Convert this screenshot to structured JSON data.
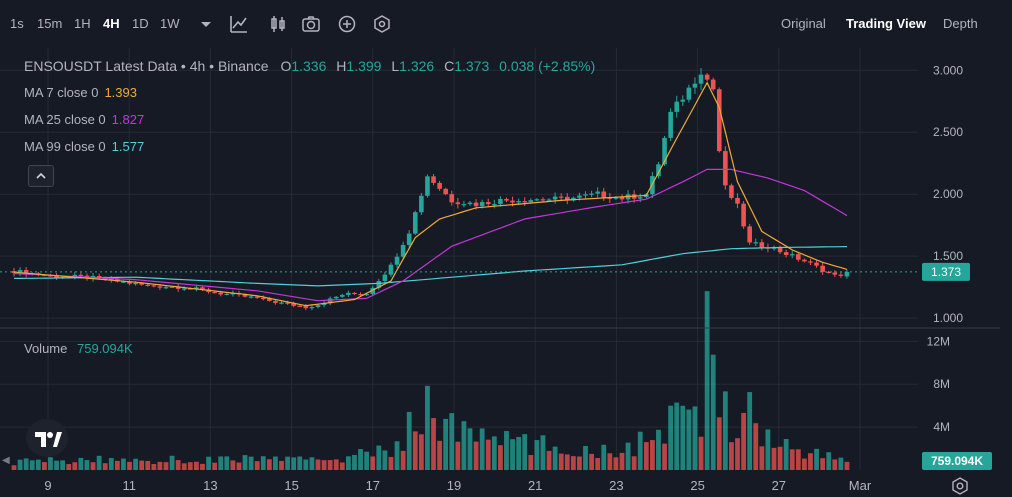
{
  "toolbar": {
    "intervals": [
      "1s",
      "15m",
      "1H",
      "4H",
      "1D",
      "1W"
    ],
    "active_interval": "4H",
    "icons": [
      "chevron-down-icon",
      "indicators-icon",
      "candle-type-icon",
      "camera-icon",
      "add-icon",
      "settings-hex-icon"
    ],
    "views": [
      "Original",
      "Trading View",
      "Depth"
    ],
    "active_view": "Trading View"
  },
  "legend": {
    "title": "ENSOUSDT Latest Data • 4h • Binance",
    "o_label": "O",
    "o": "1.336",
    "h_label": "H",
    "h": "1.399",
    "l_label": "L",
    "l": "1.326",
    "c_label": "C",
    "c": "1.373",
    "change": "0.038 (+2.85%)",
    "ma7_label": "MA 7 close 0",
    "ma7": "1.393",
    "ma25_label": "MA 25 close 0",
    "ma25": "1.827",
    "ma99_label": "MA 99 close 0",
    "ma99": "1.577"
  },
  "volume": {
    "label": "Volume",
    "value": "759.094K"
  },
  "colors": {
    "bg": "#161a25",
    "up": "#26a69a",
    "down": "#ef5350",
    "ma7": "#f0a93b",
    "ma25": "#c337d6",
    "ma99": "#4fd0d8",
    "grid": "#262a35"
  },
  "chart_data": {
    "type": "candlestick",
    "symbol": "ENSOUSDT",
    "interval": "4h",
    "price_axis": {
      "ticks": [
        "3.000",
        "2.500",
        "2.000",
        "1.500",
        "1.000"
      ],
      "range": [
        0.92,
        3.18
      ]
    },
    "volume_axis": {
      "ticks": [
        "12M",
        "8M",
        "4M"
      ],
      "range": [
        0,
        12.5
      ]
    },
    "x_ticks": [
      "9",
      "11",
      "13",
      "15",
      "17",
      "19",
      "21",
      "23",
      "25",
      "27",
      "Mar"
    ],
    "last_price": "1.373",
    "last_volume": "759.094K",
    "price_path": [
      [
        0,
        1.38
      ],
      [
        6,
        1.34
      ],
      [
        12,
        1.33
      ],
      [
        18,
        1.29
      ],
      [
        22,
        1.26
      ],
      [
        28,
        1.25
      ],
      [
        34,
        1.2
      ],
      [
        40,
        1.16
      ],
      [
        44,
        1.12
      ],
      [
        48,
        1.09
      ],
      [
        50,
        1.11
      ],
      [
        54,
        1.19
      ],
      [
        58,
        1.2
      ],
      [
        62,
        1.42
      ],
      [
        65,
        1.7
      ],
      [
        68,
        2.15
      ],
      [
        72,
        1.95
      ],
      [
        76,
        1.92
      ],
      [
        80,
        1.95
      ],
      [
        86,
        1.96
      ],
      [
        89,
        1.96
      ],
      [
        92,
        1.97
      ],
      [
        96,
        2.0
      ],
      [
        100,
        1.97
      ],
      [
        104,
        2.0
      ],
      [
        106,
        2.25
      ],
      [
        108,
        2.65
      ],
      [
        111,
        2.85
      ],
      [
        113,
        3.0
      ],
      [
        115,
        2.85
      ],
      [
        116,
        2.35
      ],
      [
        117,
        2.05
      ],
      [
        119,
        1.9
      ],
      [
        121,
        1.6
      ],
      [
        124,
        1.58
      ],
      [
        127,
        1.52
      ],
      [
        130,
        1.46
      ],
      [
        133,
        1.39
      ],
      [
        135,
        1.34
      ],
      [
        137,
        1.373
      ]
    ],
    "ma7_path": [
      [
        0,
        1.37
      ],
      [
        20,
        1.29
      ],
      [
        40,
        1.18
      ],
      [
        48,
        1.1
      ],
      [
        56,
        1.15
      ],
      [
        62,
        1.3
      ],
      [
        66,
        1.65
      ],
      [
        70,
        1.8
      ],
      [
        76,
        1.89
      ],
      [
        90,
        1.95
      ],
      [
        104,
        1.99
      ],
      [
        109,
        2.45
      ],
      [
        114,
        2.9
      ],
      [
        116,
        2.7
      ],
      [
        119,
        2.1
      ],
      [
        123,
        1.7
      ],
      [
        128,
        1.55
      ],
      [
        133,
        1.45
      ],
      [
        137,
        1.393
      ]
    ],
    "ma25_path": [
      [
        0,
        1.36
      ],
      [
        20,
        1.31
      ],
      [
        40,
        1.22
      ],
      [
        50,
        1.14
      ],
      [
        58,
        1.16
      ],
      [
        64,
        1.3
      ],
      [
        72,
        1.58
      ],
      [
        84,
        1.8
      ],
      [
        96,
        1.9
      ],
      [
        104,
        1.96
      ],
      [
        110,
        2.1
      ],
      [
        114,
        2.2
      ],
      [
        118,
        2.2
      ],
      [
        124,
        2.13
      ],
      [
        130,
        2.03
      ],
      [
        137,
        1.827
      ]
    ],
    "ma99_path": [
      [
        0,
        1.32
      ],
      [
        20,
        1.33
      ],
      [
        40,
        1.28
      ],
      [
        50,
        1.26
      ],
      [
        60,
        1.28
      ],
      [
        72,
        1.33
      ],
      [
        84,
        1.38
      ],
      [
        100,
        1.43
      ],
      [
        110,
        1.52
      ],
      [
        118,
        1.56
      ],
      [
        126,
        1.57
      ],
      [
        137,
        1.577
      ]
    ],
    "volume_path": [
      [
        0,
        0.8
      ],
      [
        10,
        0.9
      ],
      [
        20,
        1.0
      ],
      [
        30,
        0.9
      ],
      [
        40,
        1.1
      ],
      [
        48,
        0.9
      ],
      [
        56,
        1.3
      ],
      [
        62,
        1.8
      ],
      [
        66,
        4.5
      ],
      [
        68,
        5.8
      ],
      [
        72,
        3.8
      ],
      [
        80,
        2.8
      ],
      [
        90,
        2.0
      ],
      [
        100,
        1.8
      ],
      [
        106,
        3.2
      ],
      [
        110,
        5.5
      ],
      [
        113,
        4.0
      ],
      [
        114,
        12.0
      ],
      [
        116,
        8.0
      ],
      [
        118,
        4.5
      ],
      [
        120,
        6.2
      ],
      [
        124,
        3.0
      ],
      [
        130,
        1.8
      ],
      [
        137,
        0.76
      ]
    ]
  }
}
